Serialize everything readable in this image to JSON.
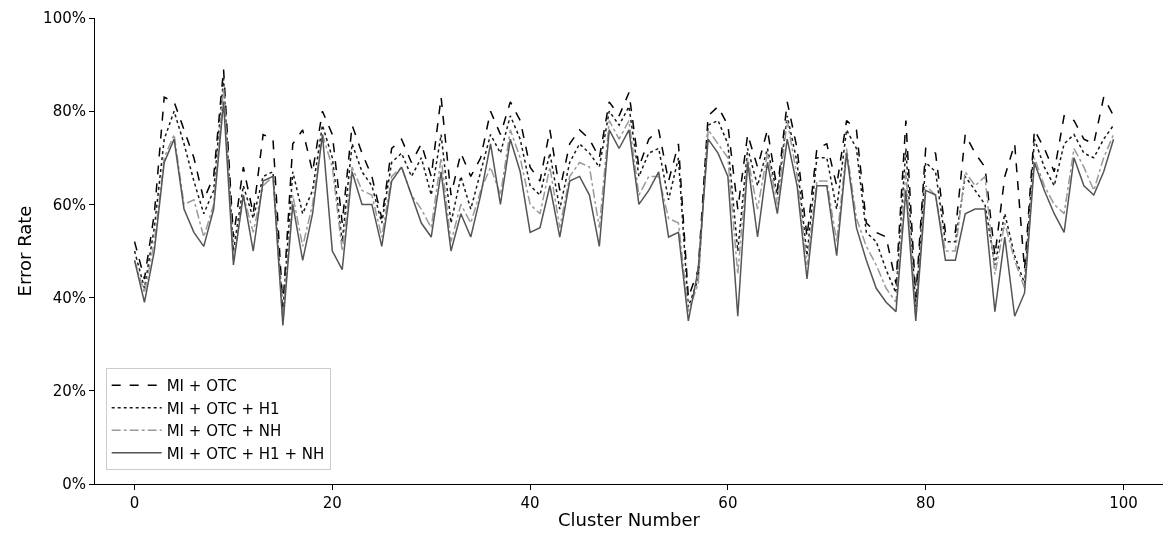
{
  "chart_data": {
    "type": "line",
    "xlabel": "Cluster Number",
    "ylabel": "Error Rate",
    "x": [
      0,
      1,
      2,
      3,
      4,
      5,
      6,
      7,
      8,
      9,
      10,
      11,
      12,
      13,
      14,
      15,
      16,
      17,
      18,
      19,
      20,
      21,
      22,
      23,
      24,
      25,
      26,
      27,
      28,
      29,
      30,
      31,
      32,
      33,
      34,
      35,
      36,
      37,
      38,
      39,
      40,
      41,
      42,
      43,
      44,
      45,
      46,
      47,
      48,
      49,
      50,
      51,
      52,
      53,
      54,
      55,
      56,
      57,
      58,
      59,
      60,
      61,
      62,
      63,
      64,
      65,
      66,
      67,
      68,
      69,
      70,
      71,
      72,
      73,
      74,
      75,
      76,
      77,
      78,
      79,
      80,
      81,
      82,
      83,
      84,
      85,
      86,
      87,
      88,
      89,
      90,
      91,
      92,
      93,
      94,
      95,
      96,
      97,
      98,
      99
    ],
    "xlim": [
      -4,
      104
    ],
    "xticks": [
      0,
      20,
      40,
      60,
      80,
      100
    ],
    "ylim": [
      0,
      100
    ],
    "yticks": [
      {
        "value": 0,
        "label": "0%"
      },
      {
        "value": 20,
        "label": "20%"
      },
      {
        "value": 40,
        "label": "40%"
      },
      {
        "value": 60,
        "label": "60%"
      },
      {
        "value": 80,
        "label": "80%"
      },
      {
        "value": 100,
        "label": "100%"
      }
    ],
    "grid": false,
    "legend": "bottom left",
    "marker": "none",
    "series": [
      {
        "name": "MI + OTC",
        "color": "#000000",
        "line_style": "dashed",
        "values": [
          52,
          44,
          58,
          83,
          82,
          76,
          70,
          61,
          66,
          89,
          53,
          68,
          58,
          75,
          74,
          38,
          73,
          76,
          67,
          80,
          75,
          56,
          77,
          71,
          66,
          57,
          72,
          74,
          69,
          73,
          66,
          83,
          62,
          71,
          66,
          70,
          80,
          75,
          82,
          78,
          68,
          65,
          76,
          63,
          73,
          76,
          74,
          70,
          82,
          79,
          84,
          68,
          74,
          76,
          65,
          73,
          40,
          46,
          79,
          81,
          77,
          59,
          75,
          68,
          76,
          63,
          82,
          72,
          53,
          72,
          73,
          64,
          78,
          76,
          56,
          54,
          53,
          43,
          78,
          40,
          72,
          71,
          54,
          54,
          75,
          71,
          68,
          49,
          66,
          73,
          46,
          76,
          72,
          67,
          79,
          78,
          74,
          73,
          83,
          79
        ]
      },
      {
        "name": "MI + OTC + H1",
        "color": "#1a1a1a",
        "line_style": "dotted",
        "values": [
          50,
          42,
          55,
          74,
          80,
          73,
          65,
          58,
          63,
          87,
          50,
          64,
          57,
          66,
          67,
          37,
          67,
          58,
          63,
          77,
          70,
          52,
          73,
          67,
          64,
          56,
          69,
          71,
          66,
          70,
          62,
          75,
          56,
          66,
          59,
          67,
          75,
          71,
          79,
          74,
          64,
          62,
          71,
          59,
          69,
          73,
          71,
          68,
          80,
          77,
          81,
          66,
          71,
          72,
          61,
          70,
          38,
          44,
          77,
          78,
          73,
          50,
          72,
          64,
          72,
          62,
          79,
          69,
          49,
          70,
          70,
          59,
          76,
          72,
          54,
          52,
          46,
          41,
          72,
          38,
          69,
          67,
          52,
          52,
          66,
          63,
          60,
          47,
          58,
          49,
          43,
          74,
          68,
          64,
          73,
          75,
          71,
          70,
          74,
          77
        ]
      },
      {
        "name": "MI + OTC + NH",
        "color": "#9a9a9a",
        "line_style": "dashdot",
        "values": [
          48,
          41,
          52,
          70,
          75,
          60,
          61,
          53,
          60,
          85,
          48,
          62,
          54,
          64,
          66,
          35,
          62,
          51,
          60,
          75,
          68,
          50,
          68,
          63,
          62,
          53,
          66,
          68,
          62,
          59,
          55,
          70,
          52,
          60,
          56,
          63,
          68,
          62,
          76,
          70,
          60,
          58,
          68,
          55,
          66,
          69,
          68,
          55,
          78,
          74,
          78,
          62,
          66,
          66,
          57,
          56,
          37,
          43,
          76,
          73,
          70,
          45,
          70,
          59,
          71,
          60,
          78,
          66,
          47,
          65,
          65,
          52,
          72,
          57,
          51,
          47,
          42,
          39,
          67,
          36,
          64,
          62,
          50,
          50,
          67,
          64,
          66,
          45,
          56,
          48,
          42,
          70,
          64,
          60,
          58,
          72,
          68,
          63,
          70,
          75
        ]
      },
      {
        "name": "MI + OTC + H1 + NH",
        "color": "#555555",
        "line_style": "solid",
        "values": [
          48,
          39,
          50,
          69,
          74,
          59,
          54,
          51,
          59,
          82,
          47,
          62,
          50,
          65,
          66,
          34,
          60,
          48,
          58,
          75,
          50,
          46,
          67,
          60,
          60,
          51,
          65,
          68,
          62,
          56,
          53,
          67,
          50,
          58,
          53,
          62,
          73,
          60,
          74,
          67,
          54,
          55,
          64,
          53,
          65,
          66,
          62,
          51,
          76,
          72,
          76,
          60,
          63,
          67,
          53,
          54,
          35,
          46,
          74,
          71,
          66,
          36,
          69,
          53,
          69,
          58,
          74,
          64,
          44,
          64,
          64,
          49,
          71,
          55,
          48,
          42,
          39,
          37,
          63,
          35,
          63,
          62,
          48,
          48,
          58,
          59,
          59,
          37,
          53,
          36,
          41,
          69,
          63,
          58,
          54,
          70,
          64,
          62,
          67,
          74
        ]
      }
    ]
  }
}
